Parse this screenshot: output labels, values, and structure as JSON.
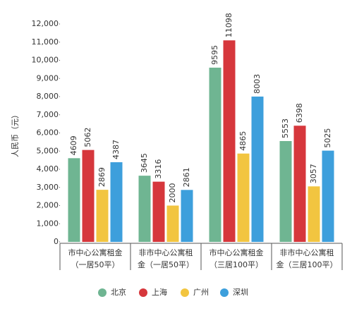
{
  "chart_data": {
    "type": "bar",
    "y_label": "人民币（元）",
    "categories": [
      [
        "市中心公寓租金",
        "（一居50平）"
      ],
      [
        "非市中心公寓租",
        "金（一居50平）"
      ],
      [
        "市中心公寓租金",
        "（三居100平）"
      ],
      [
        "非市中心公寓租",
        "金（三居100平）"
      ]
    ],
    "series": [
      {
        "name": "北京",
        "color": "#6fb592",
        "values": [
          4609,
          3645,
          9595,
          5553
        ]
      },
      {
        "name": "上海",
        "color": "#d6373c",
        "values": [
          5062,
          3316,
          11098,
          6398
        ]
      },
      {
        "name": "广州",
        "color": "#f2c540",
        "values": [
          2869,
          2000,
          4865,
          3057
        ]
      },
      {
        "name": "深圳",
        "color": "#3d9fdc",
        "values": [
          4387,
          2861,
          8003,
          5025
        ]
      }
    ],
    "ylim": [
      0,
      12000
    ],
    "yticks": [
      0,
      {
        "value": 1000,
        "label": "1,000"
      },
      {
        "value": 2000,
        "label": "2,000"
      },
      {
        "value": 3000,
        "label": "3,000"
      },
      {
        "value": 4000,
        "label": "4,000"
      },
      {
        "value": 5000,
        "label": "5,000"
      },
      {
        "value": 6000,
        "label": "6,000"
      },
      {
        "value": 7000,
        "label": "7,000"
      },
      {
        "value": 8000,
        "label": "8,000"
      },
      {
        "value": 9000,
        "label": "9,000"
      },
      {
        "value": 10000,
        "label": "10,000"
      },
      {
        "value": 11000,
        "label": "11,000"
      },
      {
        "value": 12000,
        "label": "12,000"
      }
    ],
    "grid": false
  }
}
